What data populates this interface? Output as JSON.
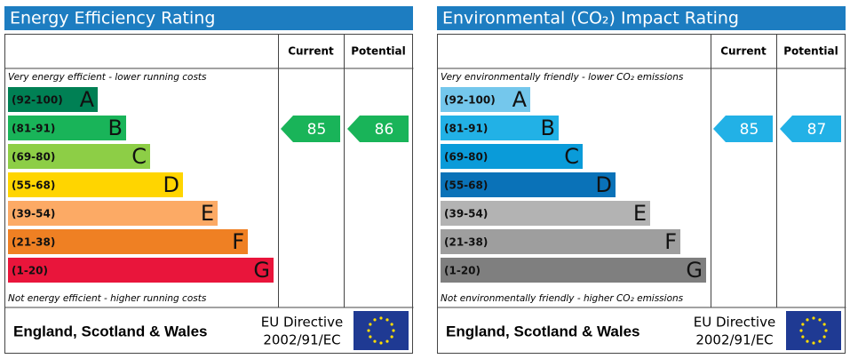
{
  "panels": [
    {
      "title": "Energy Efficiency Rating",
      "columns": [
        "Current",
        "Potential"
      ],
      "top_note": "Very energy efficient - lower running costs",
      "bottom_note": "Not energy efficient - higher running costs",
      "bands": [
        {
          "range": "(92-100)",
          "letter": "A",
          "color": "#008054"
        },
        {
          "range": "(81-91)",
          "letter": "B",
          "color": "#19b459"
        },
        {
          "range": "(69-80)",
          "letter": "C",
          "color": "#8dce46"
        },
        {
          "range": "(55-68)",
          "letter": "D",
          "color": "#ffd500"
        },
        {
          "range": "(39-54)",
          "letter": "E",
          "color": "#fcaa65"
        },
        {
          "range": "(21-38)",
          "letter": "F",
          "color": "#ef8023"
        },
        {
          "range": "(1-20)",
          "letter": "G",
          "color": "#e9153b"
        }
      ],
      "current": 85,
      "potential": 86,
      "footer": {
        "region": "England, Scotland & Wales",
        "directive": [
          "EU Directive",
          "2002/91/EC"
        ]
      }
    },
    {
      "title": "Environmental (CO₂) Impact Rating",
      "columns": [
        "Current",
        "Potential"
      ],
      "top_note": "Very environmentally friendly - lower CO₂ emissions",
      "bottom_note": "Not environmentally friendly - higher CO₂ emissions",
      "bands": [
        {
          "range": "(92-100)",
          "letter": "A",
          "color": "#74c7ec"
        },
        {
          "range": "(81-91)",
          "letter": "B",
          "color": "#22b1e6"
        },
        {
          "range": "(69-80)",
          "letter": "C",
          "color": "#0a9bd9"
        },
        {
          "range": "(55-68)",
          "letter": "D",
          "color": "#0a72b8"
        },
        {
          "range": "(39-54)",
          "letter": "E",
          "color": "#b3b3b3"
        },
        {
          "range": "(21-38)",
          "letter": "F",
          "color": "#9e9e9e"
        },
        {
          "range": "(1-20)",
          "letter": "G",
          "color": "#7f7f7f"
        }
      ],
      "current": 85,
      "potential": 87,
      "footer": {
        "region": "England, Scotland & Wales",
        "directive": [
          "EU Directive",
          "2002/91/EC"
        ]
      }
    }
  ]
}
